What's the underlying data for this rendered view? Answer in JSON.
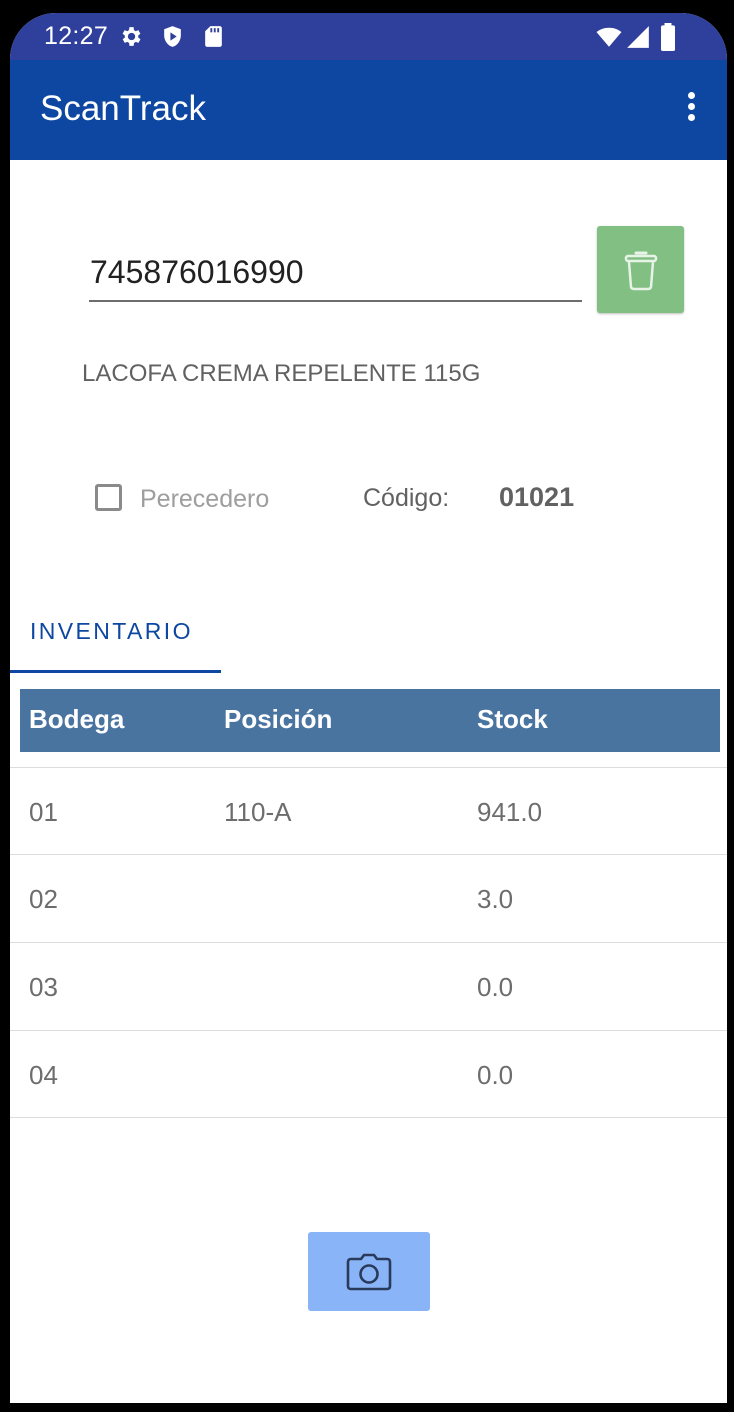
{
  "status_bar": {
    "time": "12:27",
    "icons": [
      "gear-icon",
      "shield-icon",
      "sd-card-icon",
      "wifi-icon",
      "signal-icon",
      "battery-icon"
    ]
  },
  "app_bar": {
    "title": "ScanTrack",
    "menu_icon": "more-vert-icon"
  },
  "scan": {
    "barcode_value": "745876016990",
    "delete_icon": "trash-icon",
    "product_description": "LACOFA CREMA REPELENTE 115G"
  },
  "details": {
    "perishable_label": "Perecedero",
    "perishable_checked": false,
    "code_label": "Código:",
    "code_value": "01021"
  },
  "tabs": [
    {
      "label": "INVENTARIO",
      "selected": true
    }
  ],
  "inventory_table": {
    "headers": [
      "Bodega",
      "Posición",
      "Stock"
    ],
    "rows": [
      {
        "bodega": "01",
        "posicion": "110-A",
        "stock": "941.0"
      },
      {
        "bodega": "02",
        "posicion": "",
        "stock": "3.0"
      },
      {
        "bodega": "03",
        "posicion": "",
        "stock": "0.0"
      },
      {
        "bodega": "04",
        "posicion": "",
        "stock": "0.0"
      }
    ]
  },
  "actions": {
    "camera_icon": "camera-icon"
  },
  "colors": {
    "status_bar": "#2f3f9c",
    "app_bar": "#0d47a1",
    "delete_button": "#81bf82",
    "table_header": "#4a74a0",
    "camera_button": "#8ab4f8",
    "tab_accent": "#0d47a1"
  }
}
